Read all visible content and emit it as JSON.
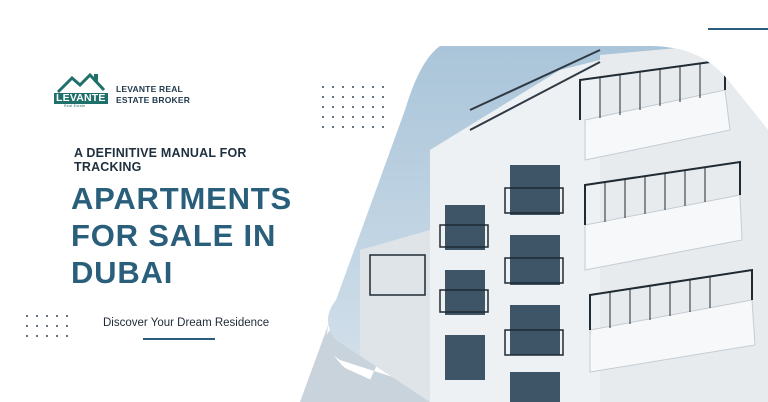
{
  "brand": {
    "logo_text": "LEVANTE",
    "logo_subtext": "Real Estate",
    "company_name_line1": "LEVANTE REAL",
    "company_name_line2": "ESTATE BROKER"
  },
  "headline": {
    "kicker_line1": "A DEFINITIVE MANUAL FOR",
    "kicker_line2": "TRACKING",
    "title_line1": "APARTMENTS",
    "title_line2": "FOR SALE IN",
    "title_line3": "DUBAI"
  },
  "tagline": "Discover Your Dream Residence",
  "colors": {
    "primary": "#2a5f7c",
    "logo_green": "#1f6f6a",
    "dark_text": "#1f2f3d",
    "shape_grey": "#c9d3dc"
  },
  "image": {
    "subject": "apartment-building-photo"
  }
}
